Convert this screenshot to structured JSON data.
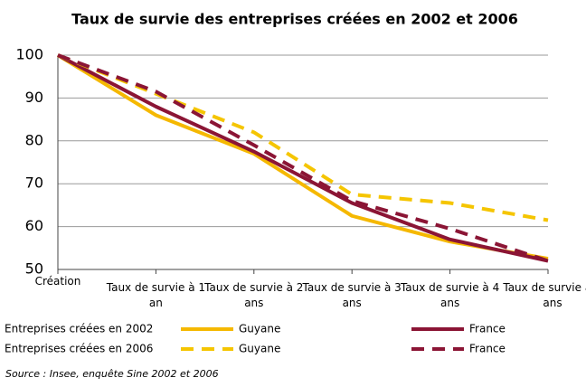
{
  "chart_data": {
    "type": "line",
    "title": "Taux de survie des entreprises créées en 2002 et 2006",
    "categories": [
      "Création",
      "Taux de survie à 1 an",
      "Taux de survie à 2 ans",
      "Taux de survie à 3 ans",
      "Taux de survie à 4 ans",
      "Taux de survie à 5 ans"
    ],
    "legend_groups": [
      "Entreprises créées en 2002",
      "Entreprises créées en 2006"
    ],
    "series": [
      {
        "name": "Guyane",
        "color": "#f5b800",
        "dashed": false,
        "group": 0,
        "values": [
          100,
          86,
          77,
          62.5,
          56.5,
          52.5
        ]
      },
      {
        "name": "France",
        "color": "#8b1535",
        "dashed": false,
        "group": 0,
        "values": [
          100,
          88,
          77.5,
          65.5,
          57,
          52
        ]
      },
      {
        "name": "Guyane",
        "color": "#f5c500",
        "dashed": true,
        "group": 1,
        "values": [
          100,
          91,
          82,
          67.5,
          65.5,
          61.5
        ]
      },
      {
        "name": "France",
        "color": "#8b1535",
        "dashed": true,
        "group": 1,
        "values": [
          100,
          91.5,
          79,
          66,
          59.5,
          52
        ]
      }
    ],
    "ylim": [
      50,
      100
    ],
    "yticks": [
      50,
      60,
      70,
      80,
      90,
      100
    ],
    "grid": true,
    "source": "Source : Insee, enquête Sine 2002 et 2006"
  }
}
